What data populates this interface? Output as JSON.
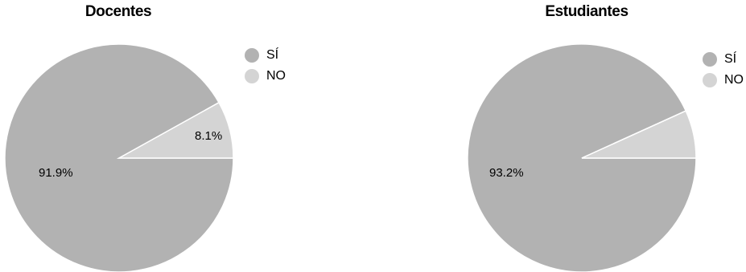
{
  "colors": {
    "si": "#b2b2b2",
    "no": "#d4d4d4",
    "separator": "#ffffff"
  },
  "chart_data": [
    {
      "type": "pie",
      "title": "Docentes",
      "categories": [
        "SÍ",
        "NO"
      ],
      "values": [
        91.9,
        8.1
      ],
      "data_labels": [
        "91.9%",
        "8.1%"
      ],
      "legend": "top-right"
    },
    {
      "type": "pie",
      "title": "Estudiantes",
      "categories": [
        "SÍ",
        "NO"
      ],
      "values": [
        93.2,
        6.8
      ],
      "data_labels": [
        "93.2%",
        ""
      ],
      "legend": "top-right"
    }
  ]
}
